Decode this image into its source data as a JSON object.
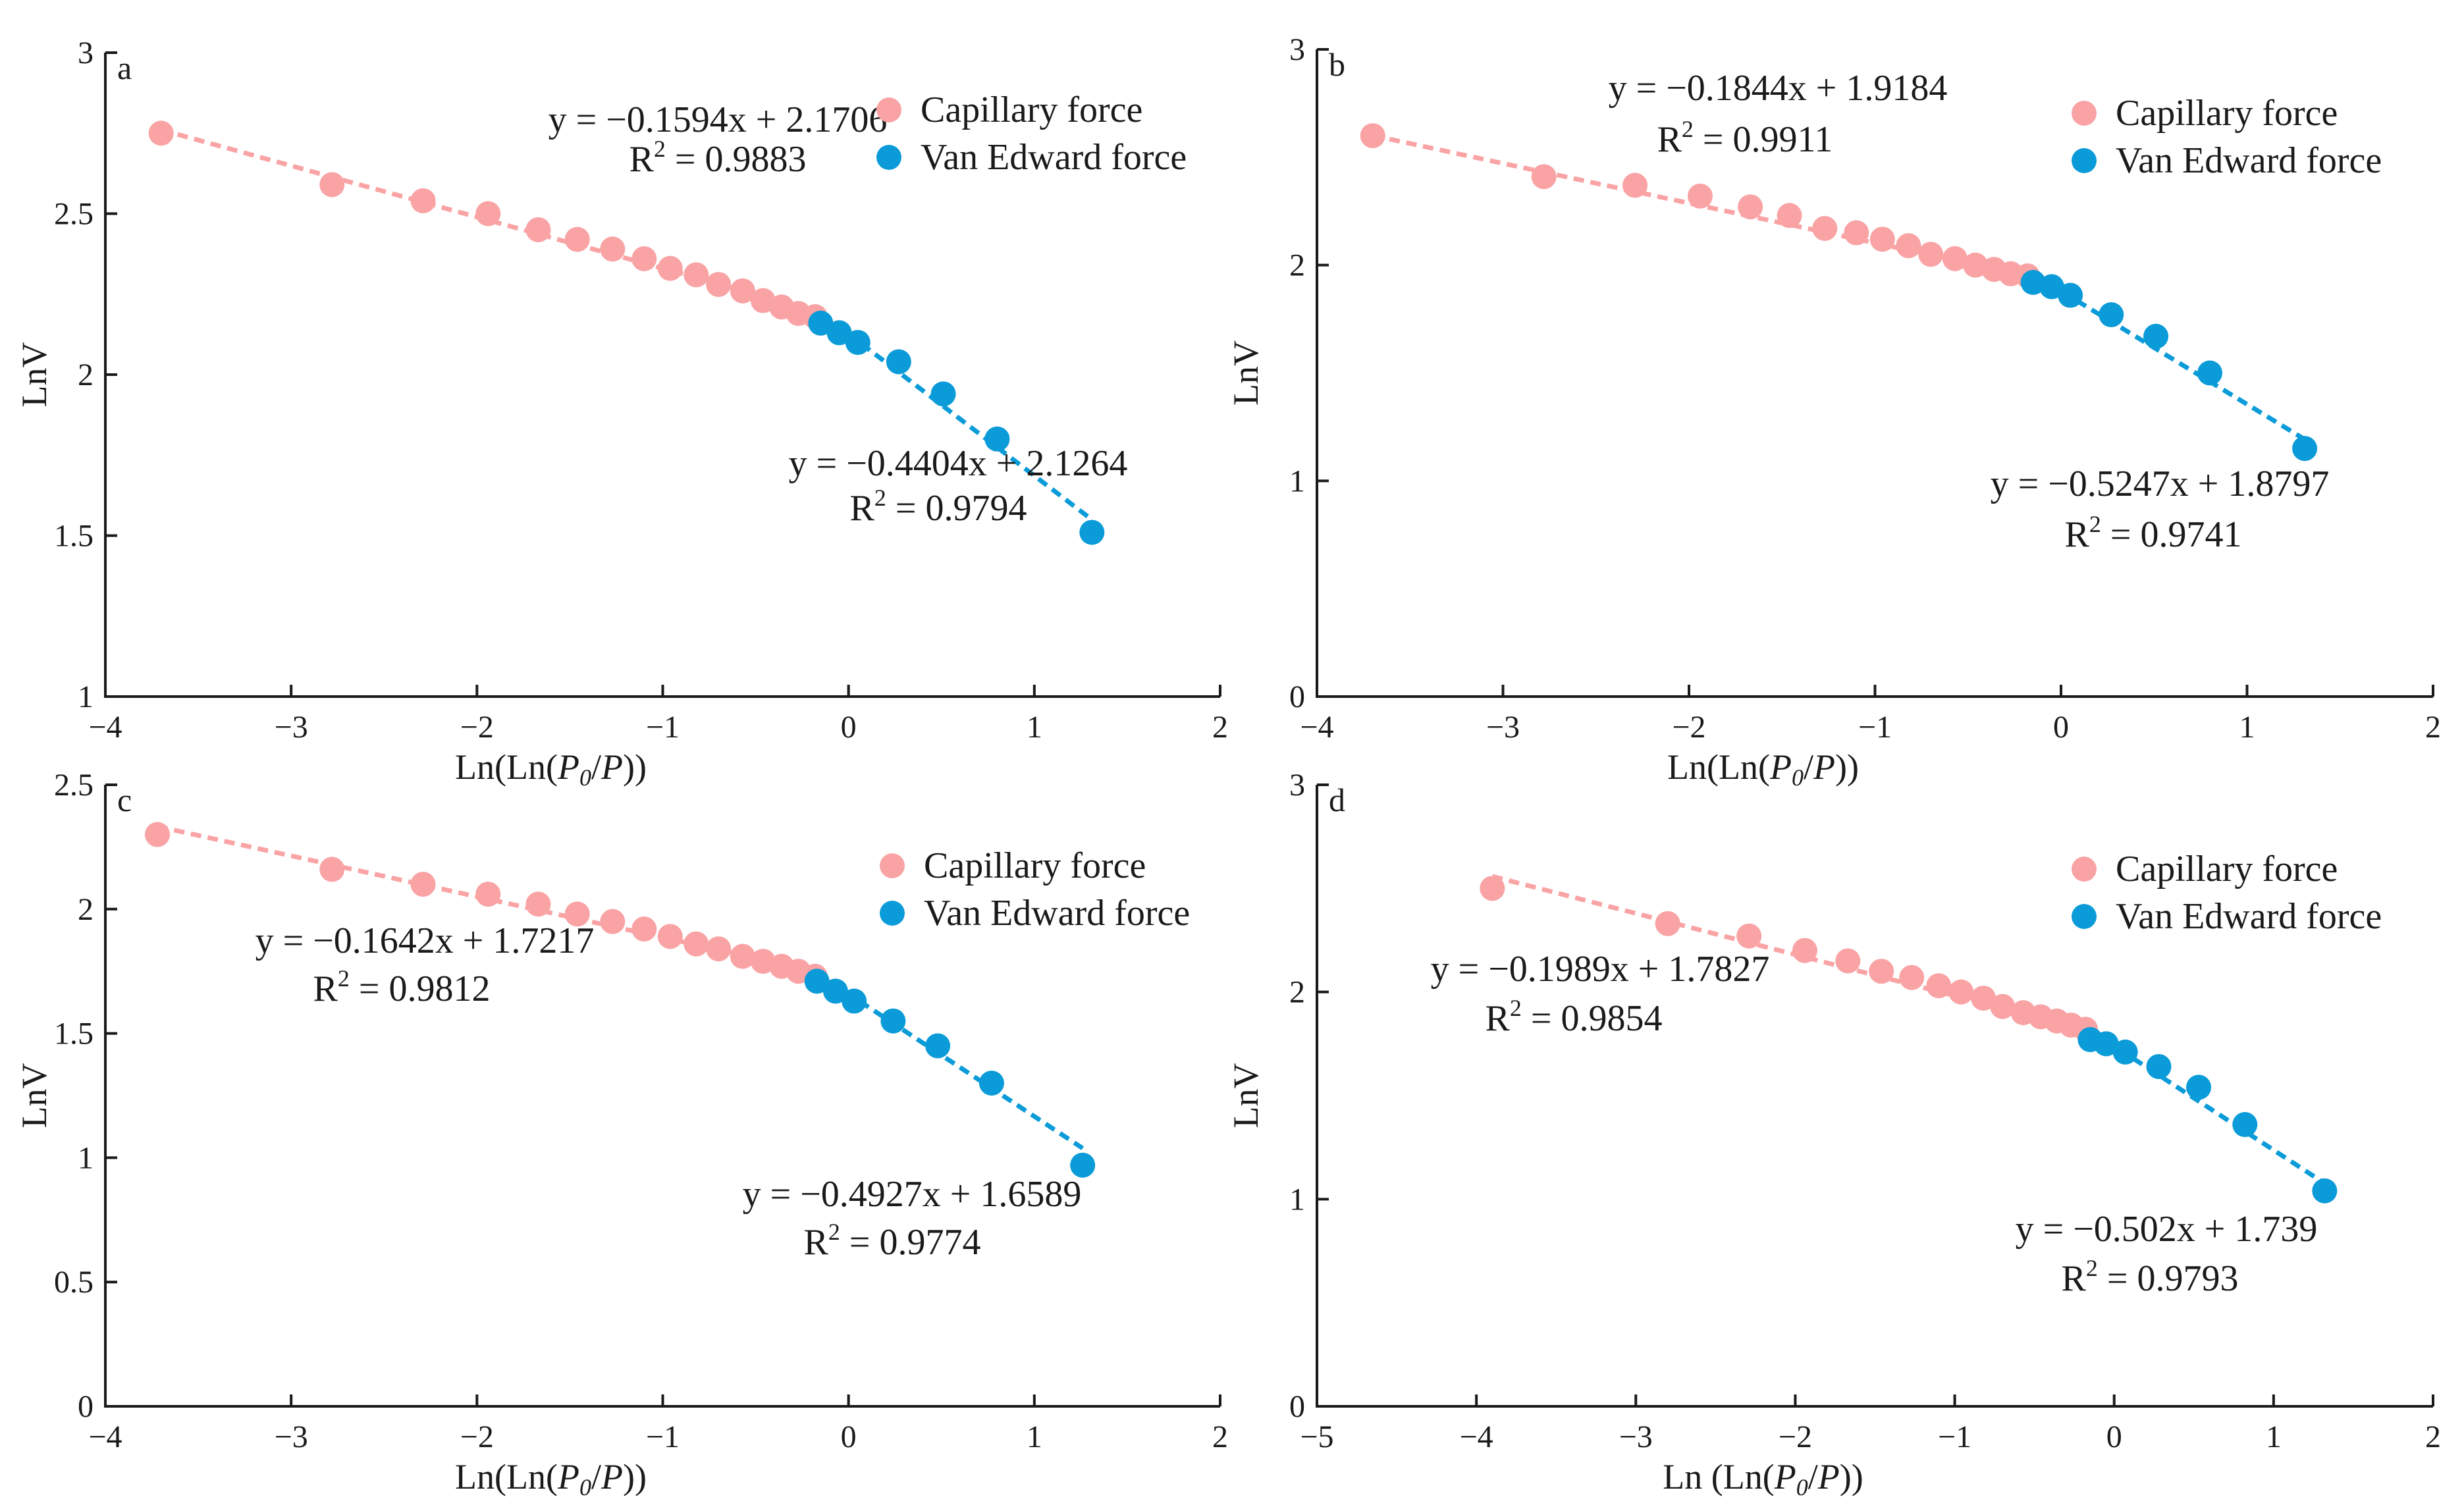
{
  "colors": {
    "capillary": "#F9A3A5",
    "vanEdward": "#0A9BD8",
    "axis": "#1a1a1a"
  },
  "chart_data": [
    {
      "type": "scatter",
      "panel": "a",
      "xlabel_parts": [
        "Ln(Ln(",
        "P",
        "0",
        "/",
        "P",
        "))"
      ],
      "ylabel": "LnV",
      "xlim": [
        -4,
        2
      ],
      "ylim": [
        1,
        3
      ],
      "xticks": [
        -4,
        -3,
        -2,
        -1,
        0,
        1,
        2
      ],
      "xtick_labels": [
        "−4",
        "−3",
        "−2",
        "−1",
        "0",
        "1",
        "2"
      ],
      "yticks": [
        1,
        1.5,
        2,
        2.5,
        3
      ],
      "ytick_labels": [
        "1",
        "1.5",
        "2",
        "2.5",
        "3"
      ],
      "legend": {
        "position": "top-right",
        "entries": [
          "Capillary force",
          "Van Edward force"
        ]
      },
      "series": [
        {
          "name": "Capillary force",
          "x": [
            -3.7,
            -2.78,
            -2.29,
            -1.94,
            -1.67,
            -1.46,
            -1.27,
            -1.1,
            -0.96,
            -0.82,
            -0.7,
            -0.57,
            -0.46,
            -0.36,
            -0.27,
            -0.18
          ],
          "y": [
            2.75,
            2.59,
            2.54,
            2.5,
            2.45,
            2.42,
            2.39,
            2.36,
            2.33,
            2.31,
            2.28,
            2.26,
            2.23,
            2.21,
            2.19,
            2.18
          ],
          "fit": {
            "slope": -0.1594,
            "intercept": 2.1706,
            "x_range": [
              -3.7,
              -0.15
            ]
          },
          "equation": "y = −0.1594x + 2.1706",
          "r2_value": "0.9883"
        },
        {
          "name": "Van Edward force",
          "x": [
            -0.15,
            -0.05,
            0.05,
            0.27,
            0.51,
            0.8,
            1.31
          ],
          "y": [
            2.16,
            2.13,
            2.1,
            2.04,
            1.94,
            1.8,
            1.51
          ],
          "fit": {
            "slope": -0.4404,
            "intercept": 2.1264,
            "x_range": [
              -0.15,
              1.31
            ]
          },
          "equation": "y = −0.4404x + 2.1264",
          "r2_value": "0.9794"
        }
      ]
    },
    {
      "type": "scatter",
      "panel": "b",
      "xlabel_parts": [
        "Ln(Ln(",
        "P",
        "0",
        "/",
        "P",
        "))"
      ],
      "ylabel": "LnV",
      "xlim": [
        -4,
        2
      ],
      "ylim": [
        0,
        3
      ],
      "xticks": [
        -4,
        -3,
        -2,
        -1,
        0,
        1,
        2
      ],
      "xtick_labels": [
        "−4",
        "−3",
        "−2",
        "−1",
        "0",
        "1",
        "2"
      ],
      "yticks": [
        0,
        1,
        2,
        3
      ],
      "ytick_labels": [
        "0",
        "1",
        "2",
        "3"
      ],
      "legend": {
        "position": "top-right",
        "entries": [
          "Capillary force",
          "Van Edward force"
        ]
      },
      "series": [
        {
          "name": "Capillary force",
          "x": [
            -3.7,
            -2.78,
            -2.29,
            -1.94,
            -1.67,
            -1.46,
            -1.27,
            -1.1,
            -0.96,
            -0.82,
            -0.7,
            -0.57,
            -0.46,
            -0.36,
            -0.27,
            -0.18
          ],
          "y": [
            2.6,
            2.41,
            2.37,
            2.32,
            2.27,
            2.23,
            2.17,
            2.15,
            2.12,
            2.09,
            2.05,
            2.03,
            2.0,
            1.98,
            1.96,
            1.95
          ],
          "fit": {
            "slope": -0.1844,
            "intercept": 1.9184,
            "x_range": [
              -3.7,
              -0.15
            ]
          },
          "equation": "y = −0.1844x + 1.9184",
          "r2_value": "0.9911"
        },
        {
          "name": "Van Edward force",
          "x": [
            -0.15,
            -0.05,
            0.05,
            0.27,
            0.51,
            0.8,
            1.31
          ],
          "y": [
            1.92,
            1.9,
            1.86,
            1.77,
            1.67,
            1.5,
            1.15
          ],
          "fit": {
            "slope": -0.5247,
            "intercept": 1.8797,
            "x_range": [
              -0.15,
              1.31
            ]
          },
          "equation": "y = −0.5247x + 1.8797",
          "r2_value": "0.9741"
        }
      ]
    },
    {
      "type": "scatter",
      "panel": "c",
      "xlabel_parts": [
        "Ln(Ln(",
        "P",
        "0",
        "/",
        "P",
        "))"
      ],
      "ylabel": "LnV",
      "xlim": [
        -4,
        2
      ],
      "ylim": [
        0,
        2.5
      ],
      "xticks": [
        -4,
        -3,
        -2,
        -1,
        0,
        1,
        2
      ],
      "xtick_labels": [
        "−4",
        "−3",
        "−2",
        "−1",
        "0",
        "1",
        "2"
      ],
      "yticks": [
        0,
        0.5,
        1,
        1.5,
        2,
        2.5
      ],
      "ytick_labels": [
        "0",
        "0.5",
        "1",
        "1.5",
        "2",
        "2.5"
      ],
      "legend": {
        "position": "top-right",
        "entries": [
          "Capillary force",
          "Van Edward force"
        ]
      },
      "series": [
        {
          "name": "Capillary force",
          "x": [
            -3.72,
            -2.78,
            -2.29,
            -1.94,
            -1.67,
            -1.46,
            -1.27,
            -1.1,
            -0.96,
            -0.82,
            -0.7,
            -0.57,
            -0.46,
            -0.36,
            -0.27,
            -0.18
          ],
          "y": [
            2.3,
            2.16,
            2.1,
            2.06,
            2.02,
            1.98,
            1.95,
            1.92,
            1.89,
            1.86,
            1.84,
            1.81,
            1.79,
            1.77,
            1.75,
            1.73
          ],
          "fit": {
            "slope": -0.1642,
            "intercept": 1.7217,
            "x_range": [
              -3.72,
              -0.17
            ]
          },
          "equation": "y = −0.1642x + 1.7217",
          "r2_value": "0.9812"
        },
        {
          "name": "Van Edward force",
          "x": [
            -0.17,
            -0.07,
            0.03,
            0.24,
            0.48,
            0.77,
            1.26
          ],
          "y": [
            1.71,
            1.67,
            1.63,
            1.55,
            1.45,
            1.3,
            0.97
          ],
          "fit": {
            "slope": -0.4927,
            "intercept": 1.6589,
            "x_range": [
              -0.17,
              1.26
            ]
          },
          "equation": "y = −0.4927x + 1.6589",
          "r2_value": "0.9774"
        }
      ]
    },
    {
      "type": "scatter",
      "panel": "d",
      "xlabel_parts": [
        "Ln (Ln(",
        "P",
        "0",
        "/",
        "P",
        "))"
      ],
      "ylabel": "LnV",
      "xlim": [
        -5,
        2
      ],
      "ylim": [
        0,
        3
      ],
      "xticks": [
        -5,
        -4,
        -3,
        -2,
        -1,
        0,
        1,
        2
      ],
      "xtick_labels": [
        "−5",
        "−4",
        "−3",
        "−2",
        "−1",
        "0",
        "1",
        "2"
      ],
      "yticks": [
        0,
        1,
        2,
        3
      ],
      "ytick_labels": [
        "0",
        "1",
        "2",
        "3"
      ],
      "legend": {
        "position": "top-right",
        "entries": [
          "Capillary force",
          "Van Edward force"
        ]
      },
      "series": [
        {
          "name": "Capillary force",
          "x": [
            -3.9,
            -2.8,
            -2.29,
            -1.94,
            -1.67,
            -1.46,
            -1.27,
            -1.1,
            -0.96,
            -0.82,
            -0.7,
            -0.57,
            -0.46,
            -0.36,
            -0.27,
            -0.18
          ],
          "y": [
            2.5,
            2.33,
            2.27,
            2.2,
            2.15,
            2.1,
            2.07,
            2.03,
            2.0,
            1.97,
            1.93,
            1.9,
            1.88,
            1.86,
            1.84,
            1.82
          ],
          "fit": {
            "slope": -0.1989,
            "intercept": 1.7827,
            "x_range": [
              -3.9,
              -0.15
            ]
          },
          "equation": "y = −0.1989x + 1.7827",
          "r2_value": "0.9854"
        },
        {
          "name": "Van Edward force",
          "x": [
            -0.15,
            -0.05,
            0.07,
            0.28,
            0.53,
            0.82,
            1.32
          ],
          "y": [
            1.77,
            1.75,
            1.71,
            1.64,
            1.54,
            1.36,
            1.04
          ],
          "fit": {
            "slope": -0.502,
            "intercept": 1.739,
            "x_range": [
              -0.15,
              1.32
            ]
          },
          "equation": "y = −0.502x + 1.739",
          "r2_value": "0.9793"
        }
      ]
    }
  ]
}
